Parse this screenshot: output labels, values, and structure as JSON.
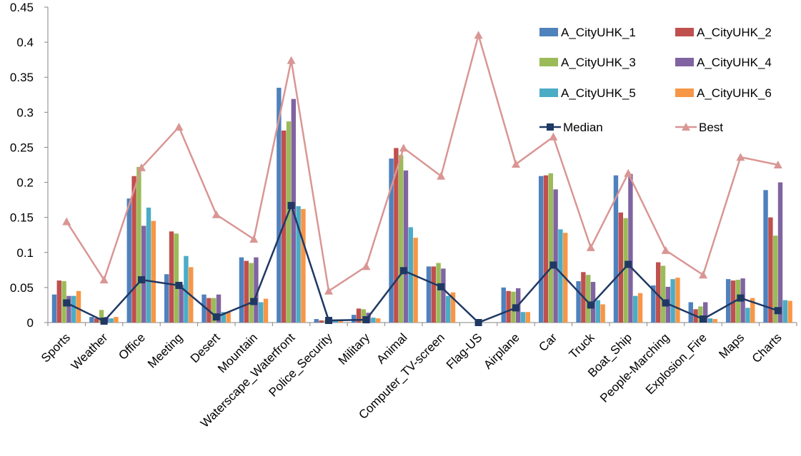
{
  "chart_data": {
    "type": "bar",
    "title": "",
    "xlabel": "",
    "ylabel": "",
    "ylim": [
      0,
      0.45
    ],
    "yticks": [
      0,
      0.05,
      0.1,
      0.15,
      0.2,
      0.25,
      0.3,
      0.35,
      0.4,
      0.45
    ],
    "ytick_labels": [
      "0",
      "0.05",
      "0.1",
      "0.15",
      "0.2",
      "0.25",
      "0.3",
      "0.35",
      "0.4",
      "0.45"
    ],
    "grid": false,
    "legend_position": "top-right",
    "categories": [
      "Sports",
      "Weather",
      "Office",
      "Meeting",
      "Desert",
      "Mountain",
      "Waterscape_Waterfront",
      "Police_Security",
      "Military",
      "Animal",
      "Computer_TV-screen",
      "Flag-US",
      "Airplane",
      "Car",
      "Truck",
      "Boat_Ship",
      "People-Marching",
      "Explosion_Fire",
      "Maps",
      "Charts"
    ],
    "series": [
      {
        "name": "A_CityUHK_1",
        "type": "bar",
        "color": "#4F81BD",
        "values": [
          0.04,
          0.008,
          0.177,
          0.069,
          0.04,
          0.093,
          0.335,
          0.005,
          0.011,
          0.234,
          0.08,
          0.0,
          0.05,
          0.209,
          0.059,
          0.21,
          0.053,
          0.029,
          0.062,
          0.189
        ]
      },
      {
        "name": "A_CityUHK_2",
        "type": "bar",
        "color": "#C0504D",
        "values": [
          0.06,
          0.006,
          0.209,
          0.13,
          0.035,
          0.088,
          0.274,
          0.003,
          0.02,
          0.249,
          0.08,
          0.0,
          0.045,
          0.21,
          0.072,
          0.157,
          0.086,
          0.019,
          0.06,
          0.15
        ]
      },
      {
        "name": "A_CityUHK_3",
        "type": "bar",
        "color": "#9BBB59",
        "values": [
          0.059,
          0.018,
          0.222,
          0.127,
          0.035,
          0.085,
          0.287,
          0.003,
          0.019,
          0.239,
          0.085,
          0.0,
          0.044,
          0.213,
          0.068,
          0.149,
          0.081,
          0.023,
          0.061,
          0.124
        ]
      },
      {
        "name": "A_CityUHK_4",
        "type": "bar",
        "color": "#8064A2",
        "values": [
          0.038,
          0.008,
          0.138,
          0.054,
          0.04,
          0.093,
          0.319,
          0.003,
          0.014,
          0.217,
          0.077,
          0.0,
          0.049,
          0.19,
          0.058,
          0.212,
          0.051,
          0.029,
          0.063,
          0.2
        ]
      },
      {
        "name": "A_CityUHK_5",
        "type": "bar",
        "color": "#4BACC6",
        "values": [
          0.038,
          0.006,
          0.164,
          0.095,
          0.015,
          0.029,
          0.166,
          0.003,
          0.007,
          0.136,
          0.038,
          0.0,
          0.015,
          0.133,
          0.032,
          0.038,
          0.062,
          0.006,
          0.021,
          0.032
        ]
      },
      {
        "name": "A_CityUHK_6",
        "type": "bar",
        "color": "#F79646",
        "values": [
          0.045,
          0.008,
          0.145,
          0.079,
          0.015,
          0.034,
          0.162,
          0.003,
          0.006,
          0.121,
          0.043,
          0.0,
          0.015,
          0.128,
          0.026,
          0.042,
          0.064,
          0.005,
          0.035,
          0.031
        ]
      },
      {
        "name": "Median",
        "type": "line",
        "color": "#1F3864",
        "marker": "square",
        "values": [
          0.028,
          0.002,
          0.061,
          0.053,
          0.008,
          0.03,
          0.167,
          0.003,
          0.004,
          0.074,
          0.051,
          0.0,
          0.021,
          0.082,
          0.025,
          0.083,
          0.028,
          0.005,
          0.035,
          0.017
        ]
      },
      {
        "name": "Best",
        "type": "line",
        "color": "#D99694",
        "marker": "triangle",
        "values": [
          0.144,
          0.061,
          0.221,
          0.279,
          0.154,
          0.119,
          0.374,
          0.045,
          0.08,
          0.249,
          0.209,
          0.41,
          0.226,
          0.265,
          0.107,
          0.213,
          0.103,
          0.068,
          0.236,
          0.225
        ]
      }
    ]
  }
}
